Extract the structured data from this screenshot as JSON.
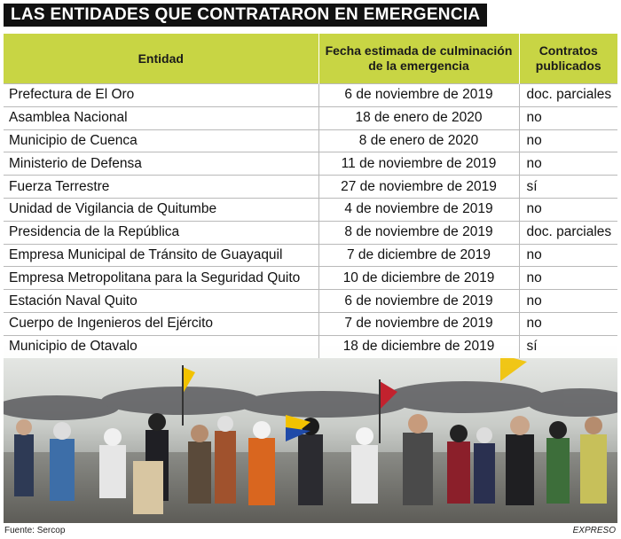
{
  "title": "LAS ENTIDADES QUE CONTRATARON EN EMERGENCIA",
  "table": {
    "headers": [
      "Entidad",
      "Fecha estimada de culminación de la emergencia",
      "Contratos publicados"
    ],
    "rows": [
      [
        "Prefectura de El Oro",
        "6 de noviembre de 2019",
        "doc. parciales"
      ],
      [
        "Asamblea Nacional",
        "18 de enero de 2020",
        "no"
      ],
      [
        "Municipio de Cuenca",
        "8 de enero de 2020",
        "no"
      ],
      [
        "Ministerio de Defensa",
        "11 de noviembre de 2019",
        "no"
      ],
      [
        "Fuerza Terrestre",
        "27 de noviembre de 2019",
        "sí"
      ],
      [
        "Unidad de Vigilancia de Quitumbe",
        "4 de noviembre de 2019",
        "no"
      ],
      [
        "Presidencia de la República",
        "8 de noviembre de 2019",
        "doc. parciales"
      ],
      [
        "Empresa Municipal de Tránsito de Guayaquil",
        "7 de diciembre de 2019",
        "no"
      ],
      [
        "Empresa Metropolitana para la Seguridad Quito",
        "10 de diciembre de 2019",
        "no"
      ],
      [
        "Estación Naval Quito",
        "6 de noviembre de 2019",
        "no"
      ],
      [
        "Cuerpo de Ingenieros del Ejército",
        "7 de noviembre de 2019",
        "no"
      ],
      [
        "Municipio de Otavalo",
        "18 de diciembre  de 2019",
        "sí"
      ]
    ]
  },
  "footer": {
    "source": "Fuente: Sercop",
    "brand": "EXPRESO"
  },
  "colors": {
    "header_bg": "#c8d544",
    "title_bg": "#111111"
  }
}
